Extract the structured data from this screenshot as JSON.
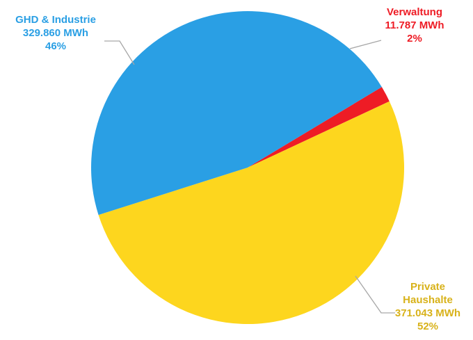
{
  "chart_data": {
    "type": "pie",
    "slices": [
      {
        "name": "Verwaltung",
        "name_lines": [
          "Verwaltung"
        ],
        "value": 11787,
        "value_label": "11.787 MWh",
        "percent_label": "2%",
        "color": "#ee1c25",
        "label_color": "#ee1c25"
      },
      {
        "name": "Private Haushalte",
        "name_lines": [
          "Private",
          "Haushalte"
        ],
        "value": 371043,
        "value_label": "371.043 MWh",
        "percent_label": "52%",
        "color": "#fdd61e",
        "label_color": "#d8b21a"
      },
      {
        "name": "GHD & Industrie",
        "name_lines": [
          "GHD & Industrie"
        ],
        "value": 329860,
        "value_label": "329.860 MWh",
        "percent_label": "46%",
        "color": "#2a9fe4",
        "label_color": "#2a9fe4"
      }
    ],
    "leader_line_color": "#a6a6a6"
  }
}
